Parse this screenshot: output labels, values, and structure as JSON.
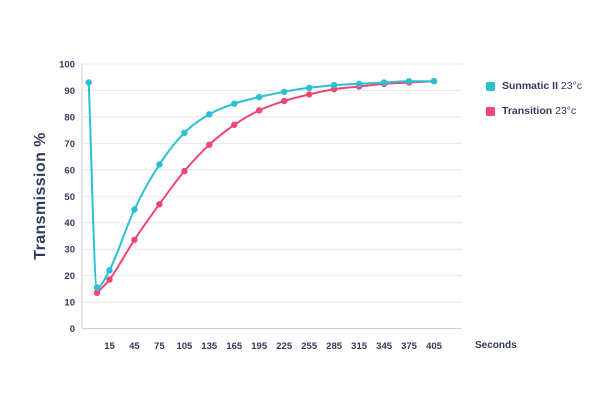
{
  "chart_data": {
    "type": "line",
    "title": "",
    "xlabel": "Seconds",
    "ylabel": "Transmission %",
    "ylim": [
      0,
      100
    ],
    "x_domain": [
      -18,
      405
    ],
    "y_ticks": [
      0,
      10,
      20,
      30,
      40,
      50,
      60,
      70,
      80,
      90,
      100
    ],
    "x_ticks": [
      15,
      45,
      75,
      105,
      135,
      165,
      195,
      225,
      255,
      285,
      315,
      345,
      375,
      405
    ],
    "grid": "horizontal",
    "legend_position": "top-right",
    "series": [
      {
        "name": "Sunmatic II",
        "suffix": "23°c",
        "color": "#2ac0d4",
        "x": [
          -10,
          0,
          15,
          45,
          75,
          105,
          135,
          165,
          195,
          225,
          255,
          285,
          315,
          345,
          375,
          405
        ],
        "y": [
          93,
          15.5,
          22,
          45,
          62,
          74,
          81,
          85,
          87.5,
          89.5,
          91,
          92,
          92.5,
          93,
          93.5,
          93.5
        ]
      },
      {
        "name": "Transition",
        "suffix": "23°c",
        "color": "#ef4577",
        "x": [
          0,
          15,
          45,
          75,
          105,
          135,
          165,
          195,
          225,
          255,
          285,
          315,
          345,
          375,
          405
        ],
        "y": [
          13.5,
          18.5,
          33.5,
          47,
          59.5,
          69.5,
          77,
          82.5,
          86,
          88.5,
          90.5,
          91.5,
          92.5,
          93,
          93.5
        ]
      }
    ]
  },
  "colors": {
    "text": "#313a5b",
    "grid": "#e7e7e9",
    "axis": "#cdd1d8"
  }
}
